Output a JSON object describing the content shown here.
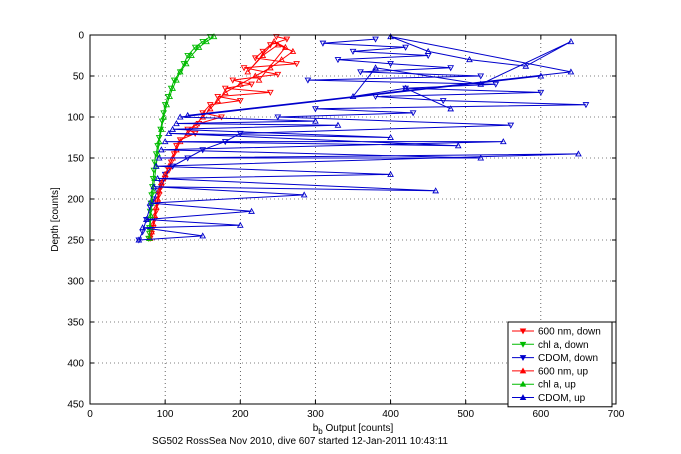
{
  "chart_data": {
    "type": "scatter",
    "title": "",
    "caption": "SG502 RossSea Nov 2010, dive 607 started 12-Jan-2011 10:43:11",
    "xlabel": "b_b Output [counts]",
    "xlabel_base": "b",
    "xlabel_sub": "b",
    "xlabel_rest": " Output [counts]",
    "ylabel": "Depth [counts]",
    "xlim": [
      0,
      700
    ],
    "ylim": [
      0,
      450
    ],
    "y_reversed": true,
    "grid": true,
    "legend_position": "bottom-right",
    "x_ticks": [
      0,
      100,
      200,
      300,
      400,
      500,
      600,
      700
    ],
    "y_ticks": [
      0,
      50,
      100,
      150,
      200,
      250,
      300,
      350,
      400,
      450
    ],
    "series": [
      {
        "name": "600 nm, down",
        "color": "#ff0000",
        "marker": "triangle-down",
        "x": [
          248,
          262,
          240,
          230,
          220,
          275,
          205,
          250,
          190,
          215,
          180,
          240,
          170,
          200,
          160,
          150,
          175,
          145,
          130,
          140,
          120,
          115,
          112,
          108,
          105,
          100,
          95,
          92,
          90,
          88,
          86,
          84,
          82,
          80
        ],
        "y": [
          2,
          5,
          12,
          20,
          28,
          35,
          40,
          48,
          55,
          60,
          65,
          70,
          75,
          80,
          85,
          95,
          100,
          108,
          115,
          120,
          128,
          135,
          145,
          155,
          165,
          175,
          185,
          195,
          205,
          215,
          225,
          235,
          242,
          248
        ]
      },
      {
        "name": "chl a, down",
        "color": "#00bb00",
        "marker": "triangle-down",
        "x": [
          160,
          150,
          140,
          130,
          125,
          120,
          112,
          108,
          104,
          100,
          98,
          96,
          94,
          92,
          90,
          88,
          86,
          85,
          84,
          83,
          82,
          81,
          80,
          80,
          79,
          79,
          78
        ],
        "y": [
          2,
          8,
          15,
          25,
          35,
          45,
          55,
          65,
          75,
          85,
          95,
          105,
          115,
          125,
          135,
          145,
          155,
          165,
          175,
          185,
          195,
          205,
          215,
          225,
          235,
          242,
          248
        ]
      },
      {
        "name": "CDOM, down",
        "color": "#0000cc",
        "marker": "triangle-down",
        "x": [
          380,
          310,
          420,
          350,
          450,
          330,
          400,
          480,
          360,
          520,
          290,
          540,
          420,
          600,
          380,
          470,
          660,
          300,
          430,
          250,
          560,
          200,
          180,
          150,
          130,
          110,
          100,
          95,
          90,
          85,
          80,
          75,
          70,
          65
        ],
        "y": [
          5,
          10,
          15,
          20,
          25,
          30,
          35,
          40,
          45,
          50,
          55,
          60,
          65,
          70,
          75,
          80,
          85,
          90,
          95,
          100,
          110,
          120,
          130,
          140,
          150,
          160,
          170,
          180,
          190,
          200,
          210,
          225,
          240,
          250
        ]
      },
      {
        "name": "600 nm, up",
        "color": "#ff0000",
        "marker": "triangle-up",
        "x": [
          80,
          82,
          84,
          86,
          88,
          90,
          92,
          95,
          100,
          105,
          110,
          115,
          120,
          130,
          140,
          150,
          160,
          170,
          180,
          200,
          220,
          240,
          255,
          270,
          250,
          230,
          210,
          245,
          260,
          225
        ],
        "y": [
          248,
          240,
          230,
          220,
          210,
          200,
          190,
          180,
          170,
          160,
          150,
          140,
          130,
          120,
          110,
          100,
          90,
          80,
          70,
          60,
          50,
          40,
          30,
          20,
          12,
          25,
          45,
          8,
          15,
          55
        ]
      },
      {
        "name": "chl a, up",
        "color": "#00bb00",
        "marker": "triangle-up",
        "x": [
          79,
          80,
          81,
          82,
          84,
          86,
          88,
          90,
          92,
          95,
          98,
          102,
          106,
          110,
          115,
          120,
          128,
          135,
          145,
          155,
          165
        ],
        "y": [
          248,
          235,
          220,
          205,
          190,
          175,
          160,
          145,
          130,
          115,
          100,
          85,
          75,
          65,
          55,
          45,
          35,
          25,
          15,
          8,
          2
        ]
      },
      {
        "name": "CDOM, up",
        "color": "#0000cc",
        "marker": "triangle-up",
        "x": [
          65,
          150,
          70,
          200,
          75,
          215,
          80,
          285,
          85,
          460,
          90,
          400,
          88,
          650,
          92,
          520,
          95,
          550,
          100,
          490,
          105,
          400,
          110,
          330,
          115,
          300,
          120,
          600,
          130,
          640,
          400,
          450,
          505,
          580,
          640,
          520,
          380,
          350,
          420,
          480
        ],
        "y": [
          250,
          245,
          235,
          232,
          225,
          215,
          205,
          195,
          185,
          190,
          175,
          170,
          160,
          145,
          150,
          150,
          140,
          130,
          130,
          135,
          120,
          125,
          115,
          110,
          108,
          105,
          100,
          50,
          98,
          45,
          2,
          20,
          30,
          38,
          8,
          60,
          40,
          75,
          65,
          90
        ]
      }
    ]
  }
}
